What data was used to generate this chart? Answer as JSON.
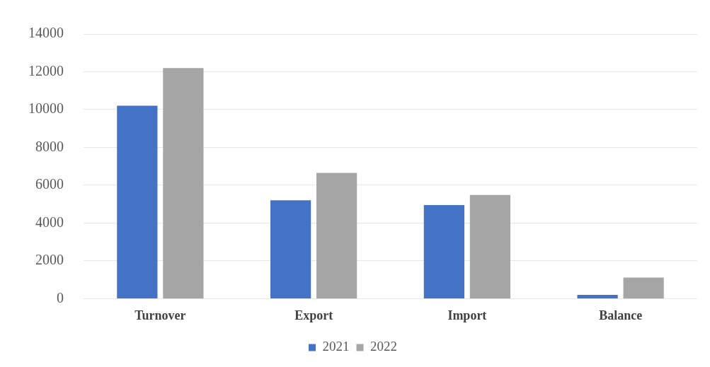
{
  "chart_data": {
    "type": "bar",
    "categories": [
      "Turnover",
      "Export",
      "Import",
      "Balance"
    ],
    "series": [
      {
        "name": "2021",
        "color": "#4472c4",
        "values": [
          10200,
          5200,
          4950,
          200
        ]
      },
      {
        "name": "2022",
        "color": "#a5a5a5",
        "values": [
          12200,
          6650,
          5480,
          1120
        ]
      }
    ],
    "ylim": [
      0,
      14000
    ],
    "yticks": [
      0,
      2000,
      4000,
      6000,
      8000,
      10000,
      12000,
      14000
    ],
    "grid": "y",
    "legend": "bottom"
  }
}
